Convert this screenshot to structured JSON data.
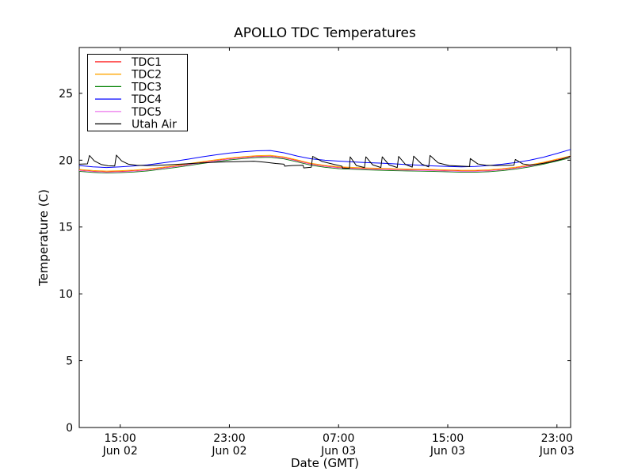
{
  "figure": {
    "background": "#ffffff",
    "frame_color": "#000000"
  },
  "chart_data": {
    "type": "line",
    "title": "APOLLO TDC Temperatures",
    "xlabel": "Date (GMT)",
    "ylabel": "Temperature (C)",
    "grid": false,
    "legend_position": "upper left",
    "xlim": [
      0,
      36
    ],
    "ylim": [
      0,
      28.43
    ],
    "x_unit": "hours since Jun 02 12:00 GMT",
    "yticks": {
      "values": [
        0,
        5,
        10,
        15,
        20,
        25
      ],
      "labels": [
        "0",
        "5",
        "10",
        "15",
        "20",
        "25"
      ]
    },
    "xticks": {
      "values": [
        3,
        11,
        19,
        27,
        35
      ],
      "labels": [
        [
          "15:00",
          "Jun 02"
        ],
        [
          "23:00",
          "Jun 02"
        ],
        [
          "07:00",
          "Jun 03"
        ],
        [
          "15:00",
          "Jun 03"
        ],
        [
          "23:00",
          "Jun 03"
        ]
      ]
    },
    "x_hours": [
      0,
      1,
      2,
      3,
      4,
      5,
      6,
      7,
      8,
      9,
      10,
      11,
      12,
      13,
      14,
      15,
      16,
      17,
      18,
      19,
      20,
      21,
      22,
      23,
      24,
      25,
      26,
      27,
      28,
      29,
      30,
      31,
      32,
      33,
      34,
      35,
      36
    ],
    "series": [
      {
        "name": "TDC1",
        "color": "#ff0000",
        "y": [
          19.25,
          19.17,
          19.12,
          19.15,
          19.2,
          19.28,
          19.4,
          19.53,
          19.68,
          19.83,
          19.97,
          20.1,
          20.2,
          20.28,
          20.3,
          20.18,
          19.95,
          19.7,
          19.55,
          19.45,
          19.4,
          19.36,
          19.33,
          19.3,
          19.28,
          19.26,
          19.24,
          19.21,
          19.18,
          19.18,
          19.22,
          19.3,
          19.42,
          19.58,
          19.78,
          20.02,
          20.26
        ]
      },
      {
        "name": "TDC2",
        "color": "#ffa500",
        "y": [
          19.31,
          19.23,
          19.18,
          19.21,
          19.26,
          19.34,
          19.46,
          19.59,
          19.74,
          19.89,
          20.03,
          20.16,
          20.26,
          20.34,
          20.36,
          20.24,
          20.01,
          19.76,
          19.61,
          19.51,
          19.46,
          19.42,
          19.39,
          19.36,
          19.34,
          19.32,
          19.3,
          19.27,
          19.24,
          19.24,
          19.28,
          19.36,
          19.48,
          19.64,
          19.84,
          20.08,
          20.32
        ]
      },
      {
        "name": "TDC3",
        "color": "#008000",
        "y": [
          19.17,
          19.09,
          19.04,
          19.07,
          19.12,
          19.2,
          19.32,
          19.45,
          19.6,
          19.75,
          19.89,
          20.02,
          20.12,
          20.2,
          20.22,
          20.1,
          19.87,
          19.62,
          19.47,
          19.37,
          19.32,
          19.28,
          19.25,
          19.22,
          19.2,
          19.18,
          19.16,
          19.13,
          19.1,
          19.1,
          19.14,
          19.22,
          19.34,
          19.5,
          19.7,
          19.94,
          20.18
        ]
      },
      {
        "name": "TDC4",
        "color": "#0000ff",
        "y": [
          19.6,
          19.5,
          19.45,
          19.5,
          19.57,
          19.65,
          19.78,
          19.92,
          20.08,
          20.25,
          20.4,
          20.53,
          20.63,
          20.7,
          20.72,
          20.55,
          20.3,
          20.1,
          20.0,
          19.93,
          19.87,
          19.82,
          19.78,
          19.73,
          19.67,
          19.62,
          19.57,
          19.53,
          19.5,
          19.53,
          19.6,
          19.7,
          19.83,
          20.0,
          20.22,
          20.5,
          20.8
        ]
      },
      {
        "name": "TDC5",
        "color": "#ee82ee",
        "y": [
          19.22,
          19.14,
          19.09,
          19.12,
          19.17,
          19.25,
          19.37,
          19.5,
          19.65,
          19.8,
          19.94,
          20.07,
          20.17,
          20.25,
          20.27,
          20.15,
          19.92,
          19.67,
          19.52,
          19.42,
          19.37,
          19.33,
          19.3,
          19.27,
          19.25,
          19.23,
          19.21,
          19.18,
          19.15,
          19.15,
          19.19,
          19.27,
          19.39,
          19.55,
          19.75,
          19.99,
          20.23
        ]
      },
      {
        "name": "Utah Air",
        "color": "#000000",
        "x": [
          0,
          0.6,
          0.75,
          1.1,
          1.6,
          2.1,
          2.6,
          2.72,
          3.1,
          3.6,
          4.2,
          5,
          6,
          7,
          8,
          9,
          10,
          11,
          12,
          12.8,
          13.6,
          14.4,
          15.0,
          15.05,
          15.6,
          16.4,
          16.45,
          17.0,
          17.1,
          17.8,
          18.6,
          19.25,
          19.3,
          19.8,
          19.85,
          20.3,
          20.9,
          21.0,
          21.5,
          22.1,
          22.2,
          22.7,
          23.3,
          23.4,
          23.9,
          24.4,
          24.5,
          25.1,
          25.6,
          25.7,
          26.3,
          27.1,
          28.0,
          28.6,
          28.65,
          29.2,
          29.8,
          30.5,
          31.5,
          31.85,
          31.95,
          32.5,
          33.0,
          33.5,
          34.0,
          34.5,
          35.0,
          35.5,
          36.0
        ],
        "y": [
          19.7,
          19.72,
          20.35,
          19.95,
          19.68,
          19.58,
          19.57,
          20.38,
          19.95,
          19.7,
          19.62,
          19.6,
          19.63,
          19.68,
          19.74,
          19.8,
          19.85,
          19.88,
          19.9,
          19.92,
          19.85,
          19.75,
          19.7,
          19.55,
          19.6,
          19.62,
          19.42,
          19.47,
          20.28,
          19.9,
          19.7,
          19.55,
          19.38,
          19.4,
          20.25,
          19.6,
          19.45,
          20.25,
          19.65,
          19.45,
          20.25,
          19.65,
          19.45,
          20.28,
          19.68,
          19.48,
          20.3,
          19.7,
          19.5,
          20.35,
          19.8,
          19.6,
          19.55,
          19.52,
          20.12,
          19.72,
          19.62,
          19.6,
          19.62,
          19.63,
          20.05,
          19.72,
          19.64,
          19.68,
          19.76,
          19.86,
          19.98,
          20.12,
          20.3
        ]
      }
    ]
  }
}
